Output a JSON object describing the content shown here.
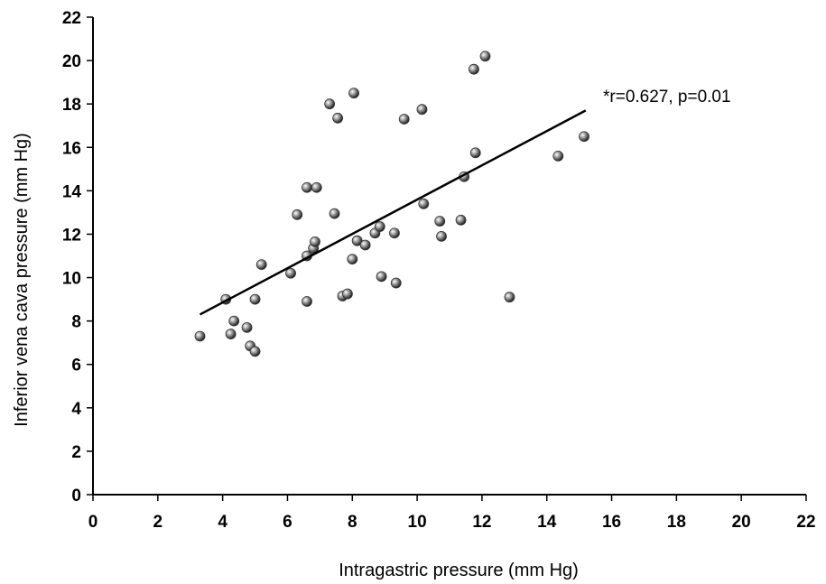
{
  "chart_data": {
    "type": "scatter",
    "title": "",
    "xlabel": "Intragastric pressure (mm Hg)",
    "ylabel": "Inferior vena cava pressure (mm Hg)",
    "xlim": [
      0,
      22
    ],
    "ylim": [
      0,
      22
    ],
    "xticks": [
      "0",
      "2",
      "4",
      "6",
      "8",
      "10",
      "12",
      "14",
      "16",
      "18",
      "20",
      "22"
    ],
    "yticks": [
      "0",
      "2",
      "4",
      "6",
      "8",
      "10",
      "12",
      "14",
      "16",
      "18",
      "20",
      "22"
    ],
    "grid": false,
    "annotation": "*r=0.627, p=0.01",
    "regression_line": {
      "x": [
        3.3,
        15.2
      ],
      "y": [
        8.3,
        17.7
      ]
    },
    "points": [
      {
        "x": 3.3,
        "y": 7.3
      },
      {
        "x": 4.1,
        "y": 9.0
      },
      {
        "x": 4.25,
        "y": 7.4
      },
      {
        "x": 4.35,
        "y": 8.0
      },
      {
        "x": 4.75,
        "y": 7.7
      },
      {
        "x": 4.85,
        "y": 6.85
      },
      {
        "x": 5.0,
        "y": 6.6
      },
      {
        "x": 5.0,
        "y": 9.0
      },
      {
        "x": 5.2,
        "y": 10.6
      },
      {
        "x": 6.1,
        "y": 10.2
      },
      {
        "x": 6.3,
        "y": 12.9
      },
      {
        "x": 6.6,
        "y": 8.9
      },
      {
        "x": 6.6,
        "y": 11.0
      },
      {
        "x": 6.6,
        "y": 14.15
      },
      {
        "x": 6.8,
        "y": 11.35
      },
      {
        "x": 6.85,
        "y": 11.65
      },
      {
        "x": 6.9,
        "y": 14.15
      },
      {
        "x": 7.3,
        "y": 18.0
      },
      {
        "x": 7.45,
        "y": 12.95
      },
      {
        "x": 7.55,
        "y": 17.35
      },
      {
        "x": 7.7,
        "y": 9.15
      },
      {
        "x": 7.85,
        "y": 9.25
      },
      {
        "x": 8.0,
        "y": 10.85
      },
      {
        "x": 8.05,
        "y": 18.5
      },
      {
        "x": 8.15,
        "y": 11.7
      },
      {
        "x": 8.4,
        "y": 11.5
      },
      {
        "x": 8.7,
        "y": 12.05
      },
      {
        "x": 8.85,
        "y": 12.35
      },
      {
        "x": 8.9,
        "y": 10.05
      },
      {
        "x": 9.3,
        "y": 12.05
      },
      {
        "x": 9.35,
        "y": 9.75
      },
      {
        "x": 9.6,
        "y": 17.3
      },
      {
        "x": 10.15,
        "y": 17.75
      },
      {
        "x": 10.2,
        "y": 13.4
      },
      {
        "x": 10.7,
        "y": 12.6
      },
      {
        "x": 10.75,
        "y": 11.9
      },
      {
        "x": 11.35,
        "y": 12.65
      },
      {
        "x": 11.45,
        "y": 14.65
      },
      {
        "x": 11.75,
        "y": 19.6
      },
      {
        "x": 11.8,
        "y": 15.75
      },
      {
        "x": 12.1,
        "y": 20.2
      },
      {
        "x": 12.85,
        "y": 9.1
      },
      {
        "x": 14.35,
        "y": 15.6
      },
      {
        "x": 15.15,
        "y": 16.5
      }
    ]
  }
}
